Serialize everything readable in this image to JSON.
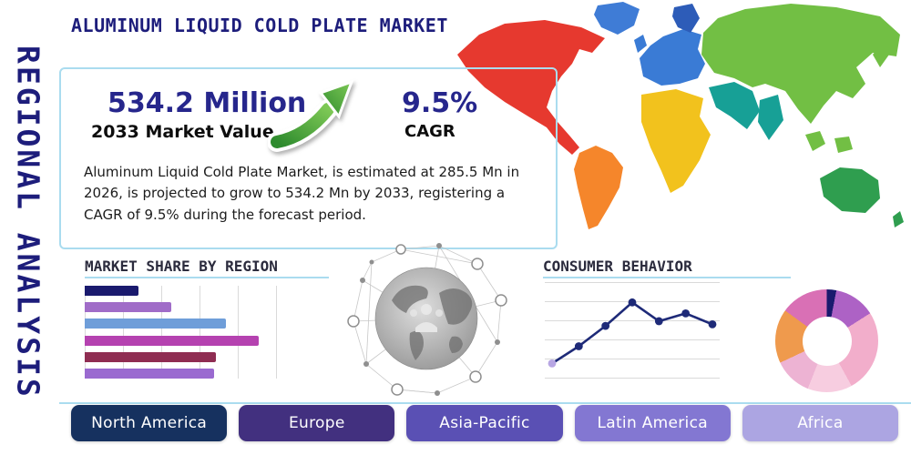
{
  "page": {
    "title": "ALUMINUM LIQUID COLD PLATE MARKET",
    "vertical_label": "REGIONAL ANALYSIS"
  },
  "stats": {
    "market_value": "534.2 Million",
    "market_value_label": "2033 Market Value",
    "cagr_value": "9.5%",
    "cagr_label": "CAGR",
    "description": "Aluminum Liquid Cold Plate Market, is estimated at 285.5 Mn in 2026, is projected to grow to 534.2 Mn by 2033, registering a CAGR of 9.5% during the forecast period."
  },
  "sections": {
    "market_share_title": "MARKET SHARE BY REGION",
    "consumer_behavior_title": "CONSUMER BEHAVIOR"
  },
  "region_buttons": [
    {
      "label": "North America",
      "color": "#16315f"
    },
    {
      "label": "Europe",
      "color": "#42307f"
    },
    {
      "label": "Asia-Pacific",
      "color": "#5a50b4"
    },
    {
      "label": "Latin America",
      "color": "#8377d2"
    },
    {
      "label": "Africa",
      "color": "#aca5e2"
    }
  ],
  "colors": {
    "accent_line": "#aadcef",
    "title_navy": "#1d1d7b",
    "stat_navy": "#26268c",
    "arrow_green": "#44a93c"
  },
  "map": {
    "north_america": "#e6392f",
    "greenland": "#3f7cd6",
    "south_america": "#f5862b",
    "europe": "#3a7bd5",
    "scandinavia": "#2d5cb8",
    "africa": "#f2c21d",
    "middle_east": "#17a096",
    "asia": "#72bf44",
    "oceania": "#2f9e4f"
  },
  "chart_data": [
    {
      "type": "bar",
      "title": "MARKET SHARE BY REGION",
      "orientation": "horizontal",
      "values": [
        28,
        45,
        73,
        90,
        68,
        67
      ],
      "colors": [
        "#1a1a6e",
        "#a06cc8",
        "#6f9ed9",
        "#b542b0",
        "#8f2d52",
        "#9a6ad0"
      ],
      "xlim": [
        0,
        100
      ],
      "grid": "vertical",
      "note": "bars unlabeled in source; lengths as percent of axis"
    },
    {
      "type": "line",
      "title": "CONSUMER BEHAVIOR",
      "x": [
        1,
        2,
        3,
        4,
        5,
        6,
        7
      ],
      "values": [
        10,
        32,
        58,
        88,
        64,
        74,
        60
      ],
      "line_color": "#1e2a78",
      "marker_color": "#1e2a78",
      "first_marker_color": "#b7a6e3",
      "ylim": [
        0,
        100
      ],
      "grid": "horizontal"
    },
    {
      "type": "pie",
      "title": "regional share donut",
      "donut": true,
      "values": [
        3,
        13,
        26,
        14,
        12,
        17,
        15
      ],
      "colors": [
        "#1a1a6e",
        "#ad62c5",
        "#f2aecb",
        "#f7cde0",
        "#edb3d3",
        "#ef9a4d",
        "#d970b5"
      ]
    }
  ]
}
